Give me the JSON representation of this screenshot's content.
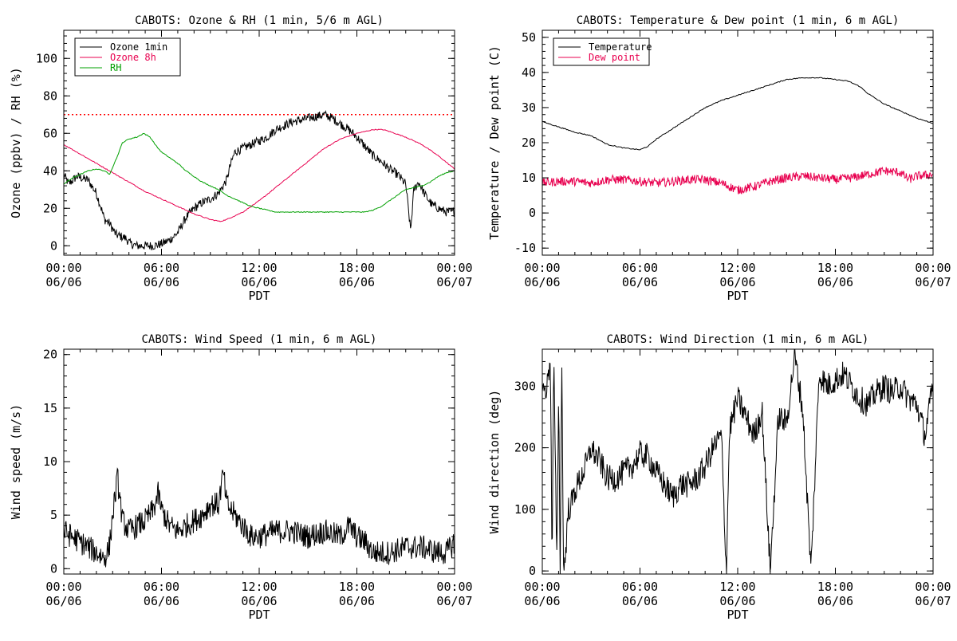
{
  "chart_data": [
    {
      "type": "line",
      "title": "CABOTS: Ozone & RH (1 min, 5/6 m AGL)",
      "xlabel": "PDT",
      "ylabel": "Ozone (ppbv) / RH (%)",
      "xlim": [
        0,
        24
      ],
      "ylim": [
        -5,
        115
      ],
      "xticks": [
        {
          "t1": "00:00",
          "t2": "06/06"
        },
        {
          "t1": "06:00",
          "t2": "06/06"
        },
        {
          "t1": "12:00",
          "t2": "06/06"
        },
        {
          "t1": "18:00",
          "t2": "06/06"
        },
        {
          "t1": "00:00",
          "t2": "06/07"
        }
      ],
      "yticks": [
        0,
        20,
        40,
        60,
        80,
        100
      ],
      "reference_line": {
        "y": 70,
        "color": "#ff0000",
        "style": "dotted"
      },
      "legend": {
        "placement": "top-left"
      },
      "series": [
        {
          "name": "Ozone 1min",
          "color": "#000000",
          "noisy": true,
          "x": [
            0,
            0.3,
            0.8,
            1.5,
            2.0,
            2.3,
            2.5,
            2.8,
            3.2,
            3.5,
            3.8,
            4.1,
            4.5,
            5.0,
            5.5,
            6.0,
            6.5,
            7.0,
            7.5,
            8.0,
            8.5,
            9.0,
            9.5,
            10.0,
            10.2,
            10.5,
            11.0,
            11.5,
            12.0,
            12.5,
            13.0,
            13.5,
            14.0,
            14.5,
            15.0,
            15.5,
            16.0,
            16.5,
            17.0,
            17.5,
            18.0,
            18.3,
            18.6,
            19.0,
            19.5,
            20.0,
            20.5,
            21.0,
            21.3,
            21.5,
            21.8,
            22.2,
            22.6,
            23.0,
            23.5,
            24.0
          ],
          "y": [
            38,
            33,
            37,
            35,
            28,
            20,
            14,
            12,
            6,
            5,
            4,
            1,
            0,
            0,
            0,
            1,
            3,
            7,
            15,
            20,
            23,
            25,
            28,
            35,
            42,
            50,
            52,
            54,
            56,
            58,
            62,
            64,
            66,
            67,
            68,
            69,
            70,
            68,
            65,
            62,
            58,
            55,
            52,
            48,
            45,
            41,
            38,
            33,
            8,
            30,
            34,
            27,
            22,
            20,
            18,
            18
          ]
        },
        {
          "name": "Ozone 8h",
          "color": "#e8004f",
          "noisy": false,
          "x": [
            0,
            1,
            2,
            3,
            4,
            5,
            6,
            7,
            8,
            9,
            9.6,
            10,
            11,
            12,
            13,
            14,
            15,
            16,
            17,
            18,
            19,
            19.6,
            20,
            21,
            22,
            23,
            24
          ],
          "y": [
            54,
            49,
            44,
            39,
            34,
            29,
            25,
            21,
            17,
            14,
            13,
            14,
            18,
            24,
            31,
            38,
            45,
            52,
            57,
            60,
            62,
            62,
            61,
            58,
            54,
            48,
            41
          ]
        },
        {
          "name": "RH",
          "color": "#00a000",
          "noisy": false,
          "x": [
            0,
            0.5,
            1,
            1.5,
            2,
            2.5,
            2.8,
            3,
            3.3,
            3.6,
            4,
            4.5,
            4.9,
            5.3,
            5.7,
            6,
            6.5,
            7,
            7.5,
            8,
            8.5,
            9,
            9.5,
            10,
            10.5,
            11,
            11.5,
            12,
            12.5,
            13,
            14,
            15,
            16,
            17,
            18,
            18.5,
            19,
            19.5,
            20,
            20.5,
            21,
            21.5,
            22,
            22.5,
            23,
            23.5,
            24
          ],
          "y": [
            33,
            36,
            38,
            40,
            41,
            40,
            38,
            42,
            48,
            55,
            57,
            58,
            60,
            58,
            53,
            50,
            47,
            44,
            40,
            37,
            34,
            32,
            30,
            27,
            25,
            23,
            21,
            20,
            19,
            18,
            18,
            18,
            18,
            18,
            18,
            18,
            19,
            21,
            24,
            27,
            30,
            31,
            32,
            34,
            37,
            39,
            40
          ]
        }
      ]
    },
    {
      "type": "line",
      "title": "CABOTS: Temperature & Dew point (1 min, 6 m AGL)",
      "xlabel": "PDT",
      "ylabel": "Temperature / Dew point (C)",
      "xlim": [
        0,
        24
      ],
      "ylim": [
        -12,
        52
      ],
      "xticks": [
        {
          "t1": "00:00",
          "t2": "06/06"
        },
        {
          "t1": "06:00",
          "t2": "06/06"
        },
        {
          "t1": "12:00",
          "t2": "06/06"
        },
        {
          "t1": "18:00",
          "t2": "06/06"
        },
        {
          "t1": "00:00",
          "t2": "06/07"
        }
      ],
      "yticks": [
        -10,
        0,
        10,
        20,
        30,
        40,
        50
      ],
      "legend": {
        "placement": "top-left"
      },
      "series": [
        {
          "name": "Temperature",
          "color": "#000000",
          "noisy": false,
          "x": [
            0,
            1,
            2,
            3,
            4,
            5,
            6,
            6.5,
            7,
            8,
            9,
            10,
            11,
            12,
            13,
            14,
            15,
            16,
            17,
            18,
            18.8,
            19.5,
            20,
            21,
            22,
            23,
            24
          ],
          "y": [
            26,
            24.5,
            23,
            22,
            19.5,
            18.5,
            18,
            19,
            21,
            24,
            27,
            30,
            32,
            33.5,
            35,
            36.5,
            38,
            38.5,
            38.5,
            38,
            37.5,
            36,
            34,
            31,
            29,
            27,
            25.5
          ]
        },
        {
          "name": "Dew point",
          "color": "#e8004f",
          "noisy": true,
          "x": [
            0,
            1,
            2,
            3,
            4,
            5,
            6,
            7,
            8,
            9,
            10,
            11,
            12,
            12.5,
            13,
            14,
            15,
            16,
            17,
            18,
            19,
            20,
            21,
            22,
            22.5,
            23,
            24
          ],
          "y": [
            8.5,
            9,
            9,
            8.5,
            9.5,
            9.5,
            9,
            8.5,
            9,
            9.5,
            9.5,
            8.5,
            6.5,
            7,
            7.5,
            9,
            10,
            10.5,
            10,
            9.5,
            10,
            11,
            12,
            11.5,
            9.5,
            10.5,
            11
          ]
        }
      ]
    },
    {
      "type": "line",
      "title": "CABOTS: Wind Speed (1 min, 6 m AGL)",
      "xlabel": "PDT",
      "ylabel": "Wind speed (m/s)",
      "xlim": [
        0,
        24
      ],
      "ylim": [
        -0.5,
        20.5
      ],
      "xticks": [
        {
          "t1": "00:00",
          "t2": "06/06"
        },
        {
          "t1": "06:00",
          "t2": "06/06"
        },
        {
          "t1": "12:00",
          "t2": "06/06"
        },
        {
          "t1": "18:00",
          "t2": "06/06"
        },
        {
          "t1": "00:00",
          "t2": "06/07"
        }
      ],
      "yticks": [
        0,
        5,
        10,
        15,
        20
      ],
      "series": [
        {
          "name": "Wind speed",
          "color": "#000000",
          "noisy": true,
          "x": [
            0,
            0.5,
            1,
            1.5,
            2,
            2.5,
            2.8,
            3.0,
            3.3,
            3.6,
            4,
            4.5,
            5,
            5.5,
            5.8,
            6,
            6.5,
            7,
            7.5,
            8,
            8.5,
            9,
            9.5,
            9.8,
            10,
            10.5,
            11,
            11.5,
            12,
            13,
            14,
            15,
            16,
            17,
            17.5,
            18,
            18.5,
            19,
            19.5,
            20,
            21,
            22,
            23,
            23.5,
            24
          ],
          "y": [
            3.5,
            3,
            2.5,
            2,
            1.5,
            1,
            2,
            5,
            8.5,
            4.5,
            3.5,
            4,
            4.5,
            5.5,
            7,
            5.5,
            4,
            3.5,
            4,
            4.5,
            5,
            6,
            6,
            9,
            6,
            5,
            4,
            3,
            3,
            3.5,
            3.5,
            3,
            3.5,
            3,
            4,
            3,
            2.5,
            1.5,
            1.5,
            1.5,
            2,
            2,
            1.5,
            1.5,
            2.5
          ]
        }
      ]
    },
    {
      "type": "line",
      "title": "CABOTS: Wind Direction (1 min, 6 m AGL)",
      "xlabel": "PDT",
      "ylabel": "Wind direction (deg)",
      "xlim": [
        0,
        24
      ],
      "ylim": [
        -5,
        360
      ],
      "xticks": [
        {
          "t1": "00:00",
          "t2": "06/06"
        },
        {
          "t1": "06:00",
          "t2": "06/06"
        },
        {
          "t1": "12:00",
          "t2": "06/06"
        },
        {
          "t1": "18:00",
          "t2": "06/06"
        },
        {
          "t1": "00:00",
          "t2": "06/07"
        }
      ],
      "yticks": [
        0,
        100,
        200,
        300
      ],
      "series": [
        {
          "name": "Wind direction",
          "color": "#000000",
          "noisy": true,
          "x": [
            0,
            0.3,
            0.5,
            0.6,
            0.7,
            0.9,
            1.0,
            1.1,
            1.2,
            1.3,
            1.4,
            1.6,
            1.8,
            2.0,
            2.5,
            2.8,
            3.0,
            3.2,
            3.5,
            4.0,
            4.5,
            5.0,
            5.5,
            6.0,
            6.5,
            7.0,
            7.5,
            8.0,
            8.5,
            9.0,
            9.5,
            10.0,
            10.5,
            11.0,
            11.3,
            11.5,
            12.0,
            12.5,
            13.0,
            13.5,
            14.0,
            14.5,
            15.0,
            15.5,
            16.0,
            16.5,
            17.0,
            17.5,
            18.0,
            18.5,
            19.0,
            19.5,
            20.0,
            20.5,
            21.0,
            21.5,
            22.0,
            22.5,
            23.0,
            23.5,
            24.0
          ],
          "y": [
            290,
            300,
            350,
            0,
            350,
            0,
            300,
            0,
            350,
            0,
            20,
            100,
            110,
            130,
            160,
            180,
            200,
            190,
            180,
            150,
            150,
            160,
            170,
            190,
            185,
            160,
            140,
            120,
            140,
            140,
            150,
            170,
            200,
            220,
            0,
            230,
            280,
            250,
            220,
            260,
            0,
            250,
            240,
            350,
            260,
            0,
            320,
            300,
            310,
            320,
            300,
            280,
            270,
            290,
            300,
            290,
            300,
            280,
            270,
            220,
            300
          ]
        }
      ]
    }
  ]
}
